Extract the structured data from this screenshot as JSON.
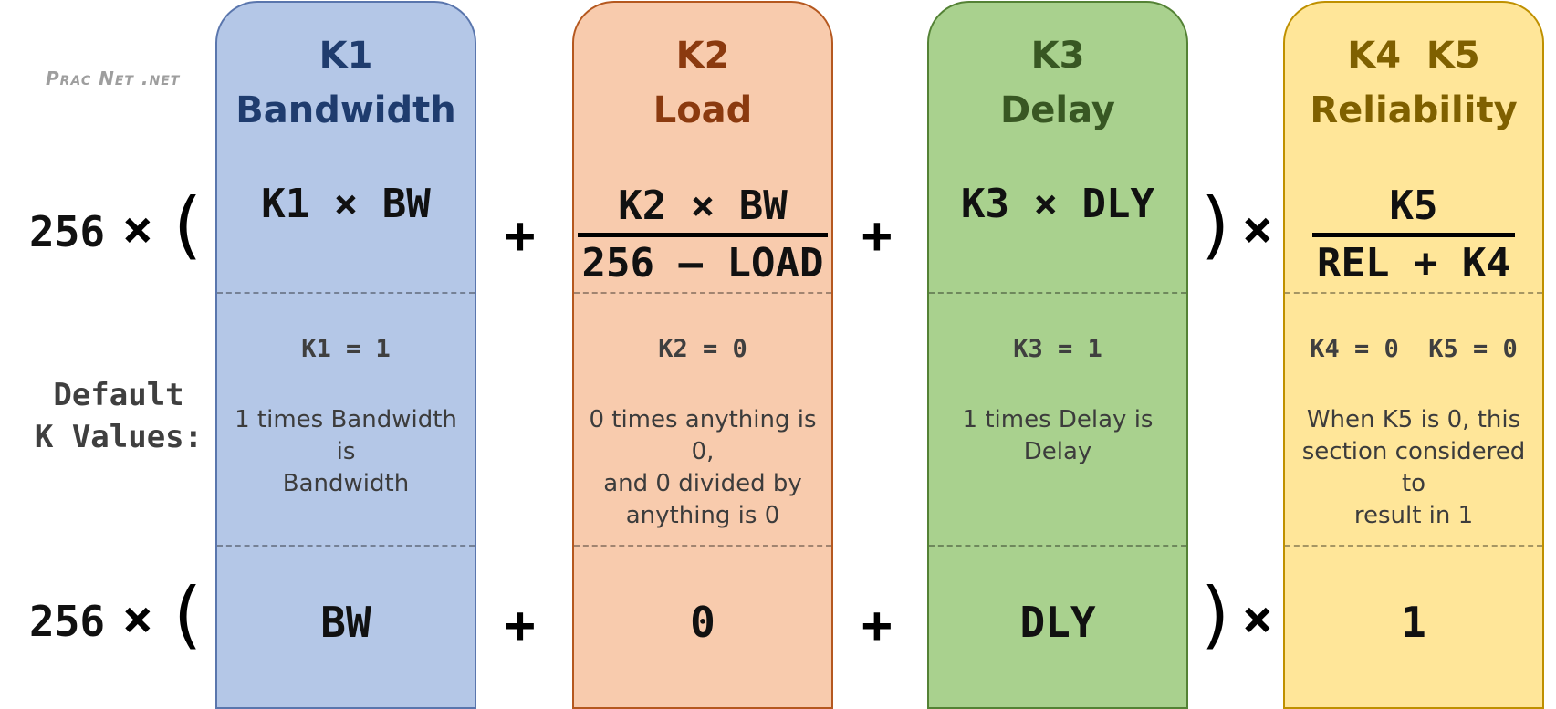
{
  "watermark": "Prac Net .net",
  "default_label": [
    "Default",
    "K Values:"
  ],
  "multiplier": "256",
  "operators": {
    "times": "×",
    "plus": "+",
    "open_paren": "(",
    "close_paren": ")"
  },
  "columns": [
    {
      "head": [
        "K1",
        "Bandwidth"
      ],
      "formula": "K1 × BW",
      "default": "K1 = 1",
      "note": [
        "1 times Bandwidth is",
        "Bandwidth"
      ],
      "result": "BW",
      "color": "#b4c7e7"
    },
    {
      "head": [
        "K2",
        "Load"
      ],
      "formula_num": "K2 × BW",
      "formula_den": "256 – LOAD",
      "default": "K2 = 0",
      "note": [
        "0 times anything is 0,",
        "and 0 divided by",
        "anything is 0"
      ],
      "result": "0",
      "color": "#f8cbad"
    },
    {
      "head": [
        "K3",
        "Delay"
      ],
      "formula": "K3 × DLY",
      "default": "K3 = 1",
      "note": [
        "1 times Delay is",
        "Delay"
      ],
      "result": "DLY",
      "color": "#a9d18e"
    },
    {
      "head": [
        "K4  K5",
        "Reliability"
      ],
      "formula_num": "K5",
      "formula_den": "REL + K4",
      "default": "K4 = 0  K5 = 0",
      "note": [
        "When K5 is 0, this",
        "section considered to",
        "result in 1"
      ],
      "result": "1",
      "color": "#ffe699"
    }
  ]
}
